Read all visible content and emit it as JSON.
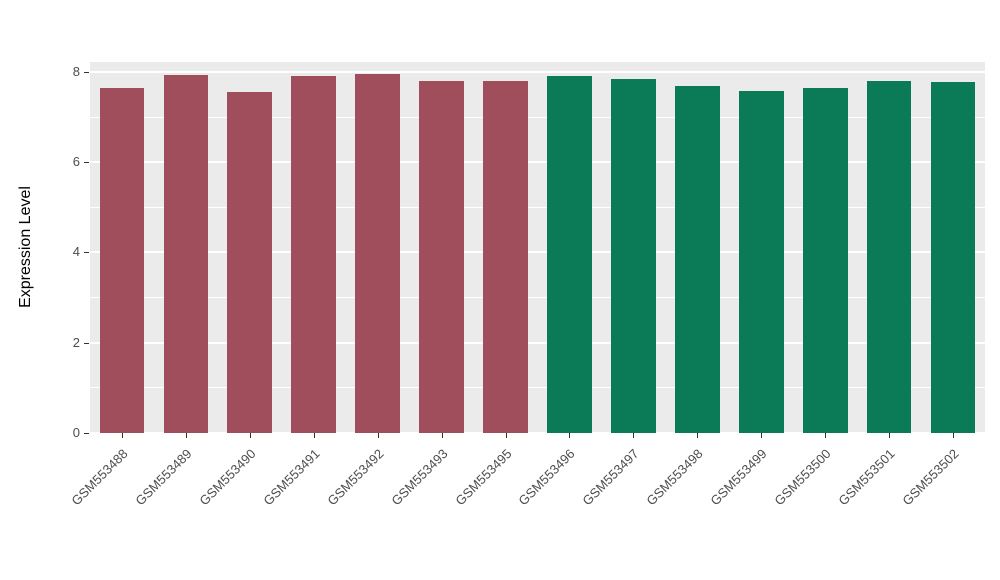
{
  "chart_data": {
    "type": "bar",
    "title": "",
    "xlabel": "",
    "ylabel": "Expression Level",
    "ylim": [
      0,
      8.22
    ],
    "yticks": [
      0,
      2,
      4,
      6,
      8
    ],
    "yticks_minor": [
      1,
      3,
      5,
      7
    ],
    "grid": "on",
    "legend": "none",
    "panel_background": "#EBEBEB",
    "grid_color": "#FFFFFF",
    "group_colors": {
      "group1": "#A04E5C",
      "group2": "#0B7B57"
    },
    "categories": [
      "GSM553488",
      "GSM553489",
      "GSM553490",
      "GSM553491",
      "GSM553492",
      "GSM553493",
      "GSM553495",
      "GSM553496",
      "GSM553497",
      "GSM553498",
      "GSM553499",
      "GSM553500",
      "GSM553501",
      "GSM553502"
    ],
    "values": [
      7.65,
      7.93,
      7.55,
      7.9,
      7.96,
      7.8,
      7.8,
      7.91,
      7.85,
      7.68,
      7.58,
      7.64,
      7.8,
      7.77
    ],
    "bar_colors": [
      "#A04E5C",
      "#A04E5C",
      "#A04E5C",
      "#A04E5C",
      "#A04E5C",
      "#A04E5C",
      "#A04E5C",
      "#0B7B57",
      "#0B7B57",
      "#0B7B57",
      "#0B7B57",
      "#0B7B57",
      "#0B7B57",
      "#0B7B57"
    ]
  }
}
